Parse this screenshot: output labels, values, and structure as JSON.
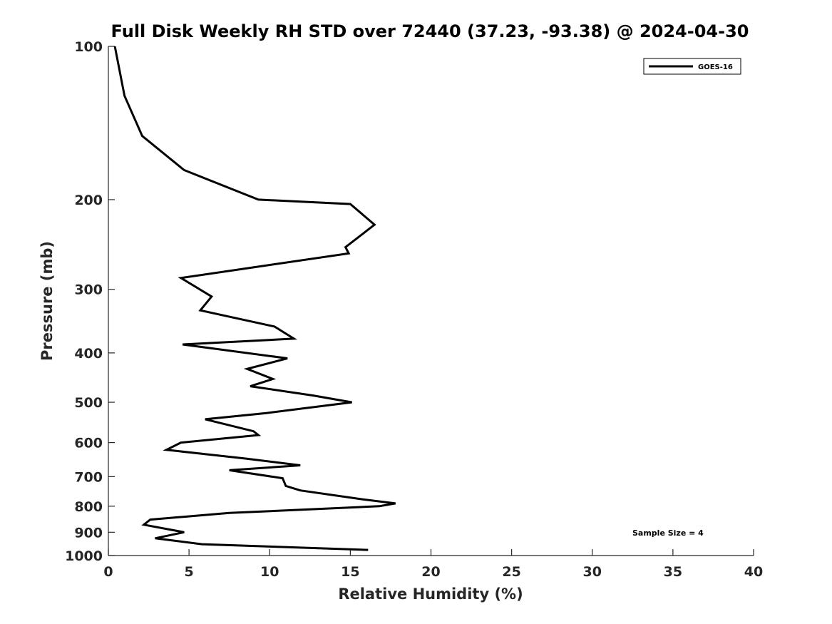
{
  "chart_data": {
    "type": "line",
    "title": "Full Disk Weekly RH STD over 72440 (37.23, -93.38) @ 2024-04-30",
    "xlabel": "Relative Humidity (%)",
    "ylabel": "Pressure (mb)",
    "xlim": [
      0,
      40
    ],
    "ylim": [
      100,
      1000
    ],
    "yscale": "log",
    "y_reversed": true,
    "xticks": [
      0,
      5,
      10,
      15,
      20,
      25,
      30,
      35,
      40
    ],
    "yticks": [
      100,
      200,
      300,
      400,
      500,
      600,
      700,
      800,
      900,
      1000
    ],
    "grid": false,
    "legend_position": "top-right",
    "series": [
      {
        "name": "GOES-16",
        "color": "#000000",
        "points": [
          [
            0.4,
            100
          ],
          [
            1.0,
            125
          ],
          [
            2.1,
            150
          ],
          [
            4.7,
            175
          ],
          [
            9.3,
            200
          ],
          [
            15.0,
            204
          ],
          [
            16.5,
            224
          ],
          [
            14.7,
            248
          ],
          [
            14.9,
            255
          ],
          [
            4.5,
            285
          ],
          [
            6.4,
            310
          ],
          [
            5.7,
            330
          ],
          [
            10.3,
            355
          ],
          [
            11.5,
            375
          ],
          [
            4.6,
            385
          ],
          [
            11.1,
            410
          ],
          [
            8.6,
            430
          ],
          [
            10.2,
            450
          ],
          [
            8.8,
            465
          ],
          [
            12.7,
            485
          ],
          [
            15.1,
            500
          ],
          [
            9.8,
            525
          ],
          [
            6.0,
            540
          ],
          [
            9.0,
            570
          ],
          [
            9.3,
            580
          ],
          [
            4.5,
            600
          ],
          [
            3.6,
            620
          ],
          [
            8.5,
            645
          ],
          [
            11.9,
            665
          ],
          [
            7.5,
            680
          ],
          [
            10.8,
            705
          ],
          [
            11.0,
            730
          ],
          [
            11.9,
            745
          ],
          [
            15.7,
            775
          ],
          [
            17.8,
            790
          ],
          [
            16.8,
            800
          ],
          [
            7.5,
            825
          ],
          [
            2.6,
            850
          ],
          [
            2.2,
            870
          ],
          [
            4.7,
            900
          ],
          [
            2.9,
            925
          ],
          [
            5.8,
            950
          ],
          [
            16.1,
            975
          ]
        ]
      }
    ],
    "annotations": [
      {
        "text": "Sample Size = 4"
      }
    ]
  }
}
